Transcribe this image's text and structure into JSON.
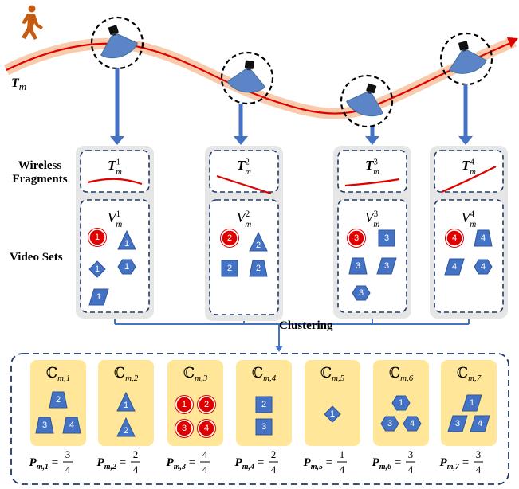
{
  "trajectory_label": "T_m",
  "row_labels": {
    "wireless_line1": "Wireless",
    "wireless_line2": "Fragments",
    "video_sets": "Video Sets"
  },
  "clustering_label": "Clustering",
  "cameras": [
    {
      "index": 1,
      "fragment_base": "T",
      "fragment_sub": "m",
      "fragment_sup": "1",
      "set_base": "V",
      "set_sub": "m",
      "set_sup": "1",
      "items": [
        {
          "shape": "circle",
          "label": "1",
          "color": "red"
        },
        {
          "shape": "triangle",
          "label": "1",
          "color": "blue"
        },
        {
          "shape": "diamond",
          "label": "1",
          "color": "blue"
        },
        {
          "shape": "hexagon",
          "label": "1",
          "color": "blue"
        },
        {
          "shape": "parallelogram",
          "label": "1",
          "color": "blue"
        }
      ]
    },
    {
      "index": 2,
      "fragment_base": "T",
      "fragment_sub": "m",
      "fragment_sup": "2",
      "set_base": "V",
      "set_sub": "m",
      "set_sup": "2",
      "items": [
        {
          "shape": "circle",
          "label": "2",
          "color": "red"
        },
        {
          "shape": "triangle",
          "label": "2",
          "color": "blue"
        },
        {
          "shape": "square",
          "label": "2",
          "color": "blue"
        },
        {
          "shape": "trapezoid",
          "label": "2",
          "color": "blue"
        }
      ]
    },
    {
      "index": 3,
      "fragment_base": "T",
      "fragment_sub": "m",
      "fragment_sup": "3",
      "set_base": "V",
      "set_sub": "m",
      "set_sup": "3",
      "items": [
        {
          "shape": "circle",
          "label": "3",
          "color": "red"
        },
        {
          "shape": "square",
          "label": "3",
          "color": "blue"
        },
        {
          "shape": "trapezoid",
          "label": "3",
          "color": "blue"
        },
        {
          "shape": "parallelogram",
          "label": "3",
          "color": "blue"
        },
        {
          "shape": "hexagon",
          "label": "3",
          "color": "blue"
        }
      ]
    },
    {
      "index": 4,
      "fragment_base": "T",
      "fragment_sub": "m",
      "fragment_sup": "4",
      "set_base": "V",
      "set_sub": "m",
      "set_sup": "4",
      "items": [
        {
          "shape": "circle",
          "label": "4",
          "color": "red"
        },
        {
          "shape": "trapezoid",
          "label": "4",
          "color": "blue"
        },
        {
          "shape": "parallelogram",
          "label": "4",
          "color": "blue"
        },
        {
          "shape": "hexagon",
          "label": "4",
          "color": "blue"
        }
      ]
    }
  ],
  "clusters": [
    {
      "name_base": "C",
      "name_sub": "m,1",
      "p_base": "P",
      "p_sub": "m,1",
      "num": "3",
      "den": "4",
      "items": [
        {
          "shape": "trapezoid",
          "label": "2"
        },
        {
          "shape": "trapezoid",
          "label": "3"
        },
        {
          "shape": "trapezoid",
          "label": "4"
        }
      ]
    },
    {
      "name_base": "C",
      "name_sub": "m,2",
      "p_base": "P",
      "p_sub": "m,2",
      "num": "2",
      "den": "4",
      "items": [
        {
          "shape": "triangle",
          "label": "1"
        },
        {
          "shape": "triangle",
          "label": "2"
        }
      ]
    },
    {
      "name_base": "C",
      "name_sub": "m,3",
      "p_base": "P",
      "p_sub": "m,3",
      "num": "4",
      "den": "4",
      "items": [
        {
          "shape": "circle",
          "label": "1"
        },
        {
          "shape": "circle",
          "label": "2"
        },
        {
          "shape": "circle",
          "label": "3"
        },
        {
          "shape": "circle",
          "label": "4"
        }
      ]
    },
    {
      "name_base": "C",
      "name_sub": "m,4",
      "p_base": "P",
      "p_sub": "m,4",
      "num": "2",
      "den": "4",
      "items": [
        {
          "shape": "square",
          "label": "2"
        },
        {
          "shape": "square",
          "label": "3"
        }
      ]
    },
    {
      "name_base": "C",
      "name_sub": "m,5",
      "p_base": "P",
      "p_sub": "m,5",
      "num": "1",
      "den": "4",
      "items": [
        {
          "shape": "diamond",
          "label": "1"
        }
      ]
    },
    {
      "name_base": "C",
      "name_sub": "m,6",
      "p_base": "P",
      "p_sub": "m,6",
      "num": "3",
      "den": "4",
      "items": [
        {
          "shape": "hexagon",
          "label": "1"
        },
        {
          "shape": "hexagon",
          "label": "3"
        },
        {
          "shape": "hexagon",
          "label": "4"
        }
      ]
    },
    {
      "name_base": "C",
      "name_sub": "m,7",
      "p_base": "P",
      "p_sub": "m,7",
      "num": "3",
      "den": "4",
      "items": [
        {
          "shape": "parallelogram",
          "label": "1"
        },
        {
          "shape": "parallelogram",
          "label": "3"
        },
        {
          "shape": "parallelogram",
          "label": "4"
        }
      ]
    }
  ],
  "colors": {
    "shape_blue": "#4472C4",
    "shape_blue_dark": "#2F5597",
    "object_red": "#E00000",
    "trajectory_red": "#E00000",
    "trajectory_glow": "#F8CBAD",
    "panel_gray": "#E7E6E6",
    "cluster_yellow": "#FFE699",
    "dash_blue": "#203864",
    "arrow_blue": "#4472C4",
    "pedestrian": "#C55A11"
  }
}
